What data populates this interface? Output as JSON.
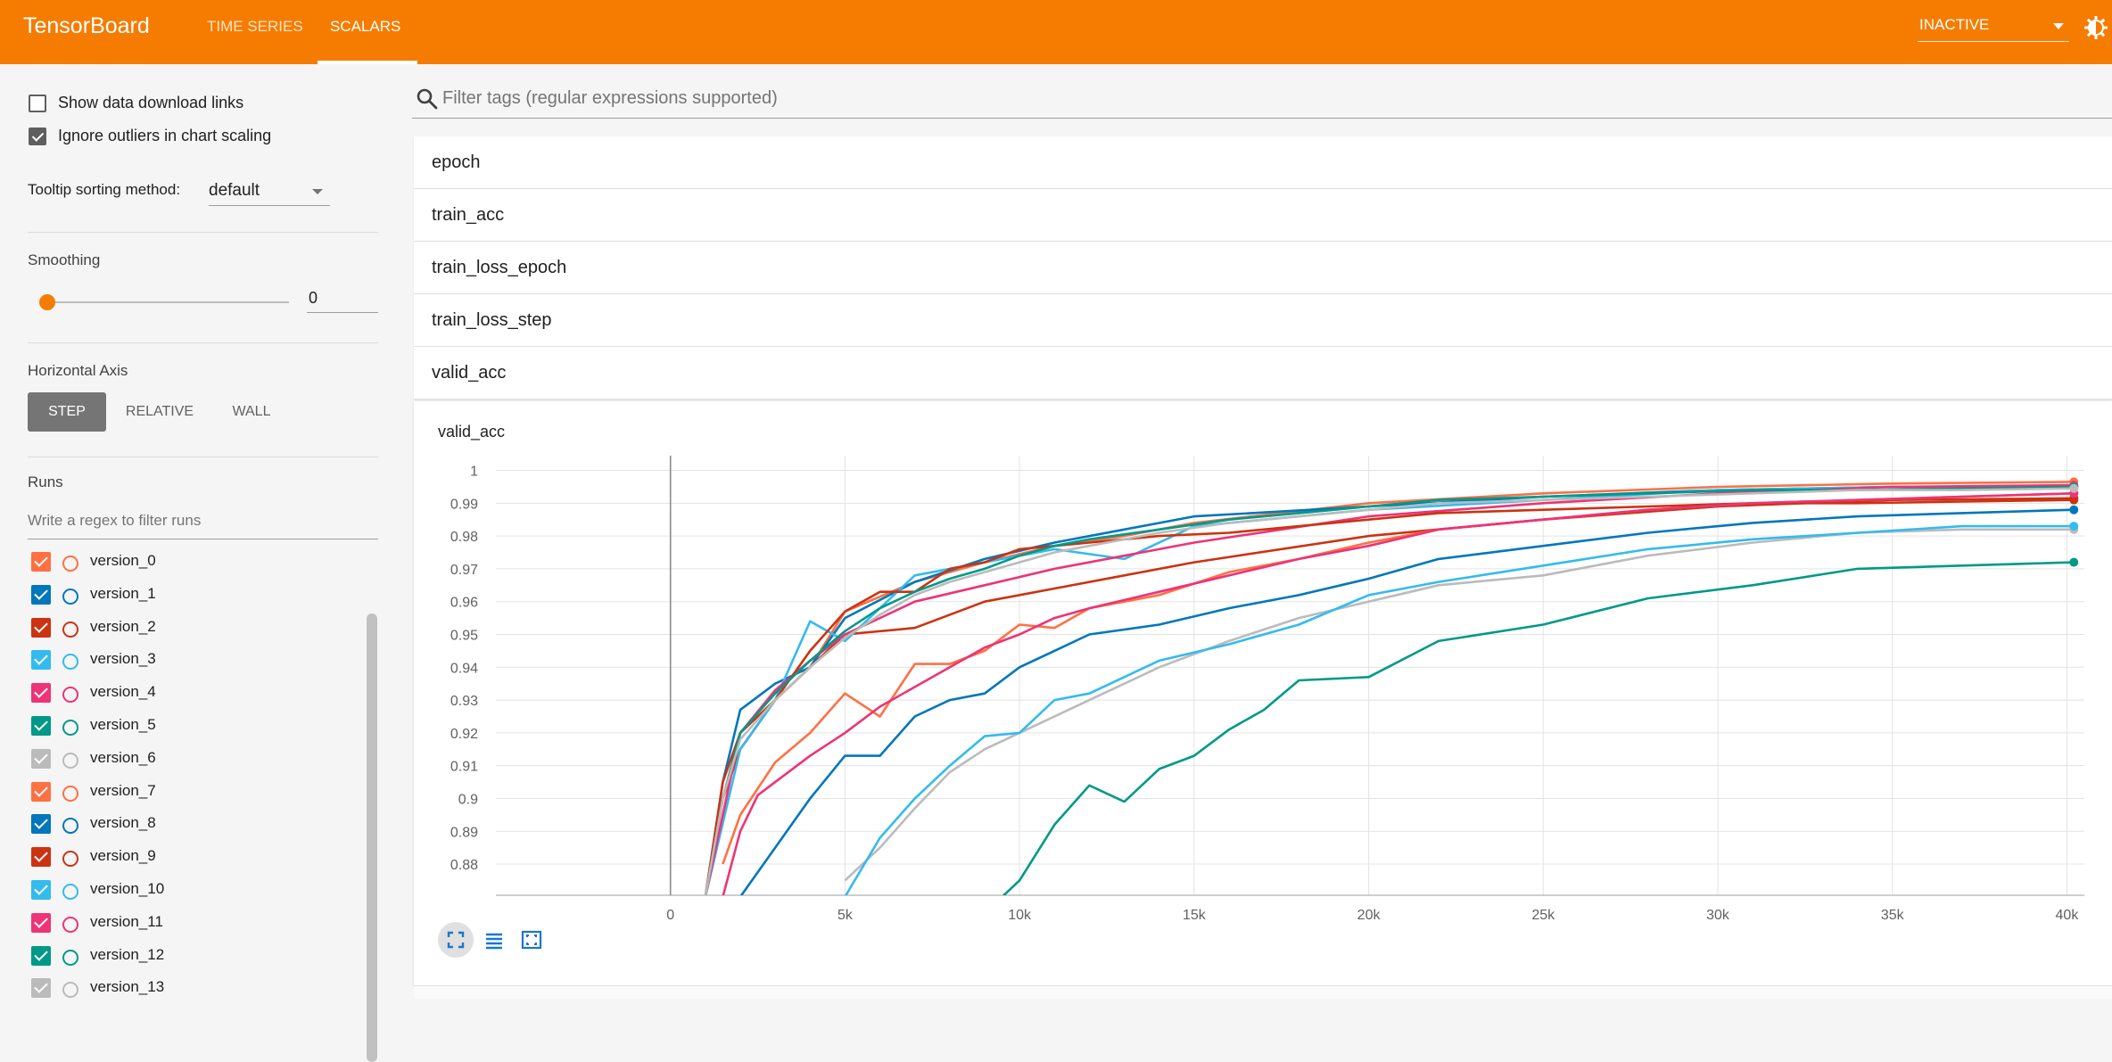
{
  "header": {
    "brand": "TensorBoard",
    "tabs": [
      {
        "label": "TIME SERIES",
        "active": false
      },
      {
        "label": "SCALARS",
        "active": true
      }
    ],
    "run_status": "INACTIVE"
  },
  "sidebar": {
    "show_download_links": {
      "label": "Show data download links",
      "checked": false
    },
    "ignore_outliers": {
      "label": "Ignore outliers in chart scaling",
      "checked": true
    },
    "tooltip_sorting": {
      "label": "Tooltip sorting method:",
      "value": "default"
    },
    "smoothing": {
      "label": "Smoothing",
      "value": "0"
    },
    "horizontal_axis": {
      "label": "Horizontal Axis",
      "options": [
        "STEP",
        "RELATIVE",
        "WALL"
      ],
      "selected": "STEP"
    },
    "runs": {
      "label": "Runs",
      "filter_placeholder": "Write a regex to filter runs",
      "items": [
        {
          "name": "version_0",
          "color": "#ff7043",
          "checked": true
        },
        {
          "name": "version_1",
          "color": "#0077bb",
          "checked": true
        },
        {
          "name": "version_2",
          "color": "#cc3311",
          "checked": true
        },
        {
          "name": "version_3",
          "color": "#33bbee",
          "checked": true
        },
        {
          "name": "version_4",
          "color": "#ee3377",
          "checked": true
        },
        {
          "name": "version_5",
          "color": "#009988",
          "checked": true
        },
        {
          "name": "version_6",
          "color": "#bbbbbb",
          "checked": true
        },
        {
          "name": "version_7",
          "color": "#ff7043",
          "checked": true
        },
        {
          "name": "version_8",
          "color": "#0077bb",
          "checked": true
        },
        {
          "name": "version_9",
          "color": "#cc3311",
          "checked": true
        },
        {
          "name": "version_10",
          "color": "#33bbee",
          "checked": true
        },
        {
          "name": "version_11",
          "color": "#ee3377",
          "checked": true
        },
        {
          "name": "version_12",
          "color": "#009988",
          "checked": true
        },
        {
          "name": "version_13",
          "color": "#bbbbbb",
          "checked": true
        }
      ]
    }
  },
  "main": {
    "filter_placeholder": "Filter tags (regular expressions supported)",
    "tags": [
      "epoch",
      "train_acc",
      "train_loss_epoch",
      "train_loss_step",
      "valid_acc"
    ],
    "card_title": "valid_acc"
  },
  "chart_data": {
    "type": "line",
    "title": "valid_acc",
    "xlabel": "",
    "ylabel": "",
    "xlim": [
      -5000,
      40500
    ],
    "ylim": [
      0.8705,
      1.0045
    ],
    "x_ticks": [
      0,
      5000,
      10000,
      15000,
      20000,
      25000,
      30000,
      35000,
      40000
    ],
    "x_tick_labels": [
      "0",
      "5k",
      "10k",
      "15k",
      "20k",
      "25k",
      "30k",
      "35k",
      "40k"
    ],
    "y_ticks": [
      0.88,
      0.89,
      0.9,
      0.91,
      0.92,
      0.93,
      0.94,
      0.95,
      0.96,
      0.97,
      0.98,
      0.99,
      1
    ],
    "y_tick_labels": [
      "0.88",
      "0.89",
      "0.9",
      "0.91",
      "0.92",
      "0.93",
      "0.94",
      "0.95",
      "0.96",
      "0.97",
      "0.98",
      "0.99",
      "1"
    ],
    "grid": true,
    "legend": "none",
    "series": [
      {
        "color": "#ff7043",
        "x": [
          1000,
          1500,
          2000,
          3000,
          4000,
          5000,
          7000,
          9000,
          11000,
          13000,
          15000,
          20000,
          25000,
          30000,
          35000,
          40200
        ],
        "values": [
          0.87,
          0.9,
          0.915,
          0.93,
          0.94,
          0.957,
          0.966,
          0.972,
          0.977,
          0.98,
          0.984,
          0.99,
          0.993,
          0.995,
          0.996,
          0.9965
        ]
      },
      {
        "color": "#0077bb",
        "x": [
          1000,
          1500,
          2000,
          3000,
          4000,
          5000,
          7000,
          9000,
          11000,
          13000,
          15000,
          20000,
          25000,
          30000,
          35000,
          40200
        ],
        "values": [
          0.87,
          0.905,
          0.927,
          0.935,
          0.94,
          0.955,
          0.966,
          0.973,
          0.978,
          0.982,
          0.986,
          0.989,
          0.992,
          0.994,
          0.995,
          0.995
        ]
      },
      {
        "color": "#cc3311",
        "x": [
          1000,
          1500,
          2000,
          3000,
          4000,
          5000,
          7000,
          9000,
          11000,
          13000,
          15000,
          20000,
          25000,
          30000,
          35000,
          40200
        ],
        "values": [
          0.87,
          0.9,
          0.915,
          0.93,
          0.94,
          0.95,
          0.952,
          0.96,
          0.964,
          0.968,
          0.972,
          0.98,
          0.985,
          0.989,
          0.991,
          0.9915
        ]
      },
      {
        "color": "#33bbee",
        "x": [
          1000,
          2000,
          3000,
          4000,
          5000,
          7000,
          9000,
          11000,
          13000,
          15000,
          20000,
          25000,
          30000,
          35000,
          40200
        ],
        "values": [
          0.87,
          0.915,
          0.93,
          0.954,
          0.948,
          0.968,
          0.972,
          0.976,
          0.973,
          0.983,
          0.988,
          0.991,
          0.994,
          0.995,
          0.995
        ]
      },
      {
        "color": "#ee3377",
        "x": [
          1000,
          2000,
          3000,
          4000,
          5000,
          7000,
          9000,
          11000,
          13000,
          15000,
          20000,
          25000,
          30000,
          35000,
          40200
        ],
        "values": [
          0.87,
          0.92,
          0.933,
          0.942,
          0.95,
          0.96,
          0.965,
          0.97,
          0.974,
          0.978,
          0.986,
          0.99,
          0.993,
          0.995,
          0.9955
        ]
      },
      {
        "color": "#009988",
        "x": [
          9500,
          10000,
          11000,
          12000,
          13000,
          14000,
          15000,
          16000,
          17000,
          18000,
          20000,
          22000,
          25000,
          28000,
          31000,
          34000,
          37000,
          40200
        ],
        "values": [
          0.87,
          0.875,
          0.892,
          0.904,
          0.899,
          0.909,
          0.913,
          0.921,
          0.927,
          0.936,
          0.937,
          0.948,
          0.953,
          0.961,
          0.965,
          0.97,
          0.971,
          0.972
        ]
      },
      {
        "color": "#bbbbbb",
        "x": [
          5000,
          6000,
          7000,
          8000,
          9000,
          10000,
          12000,
          14000,
          16000,
          18000,
          20000,
          22000,
          25000,
          28000,
          31000,
          34000,
          37000,
          40200
        ],
        "values": [
          0.875,
          0.885,
          0.897,
          0.908,
          0.915,
          0.92,
          0.93,
          0.94,
          0.948,
          0.955,
          0.96,
          0.965,
          0.968,
          0.974,
          0.978,
          0.981,
          0.982,
          0.982
        ]
      },
      {
        "color": "#ff7043",
        "x": [
          1500,
          2000,
          3000,
          4000,
          5000,
          6000,
          7000,
          8000,
          9000,
          10000,
          11000,
          12000,
          14000,
          16000,
          18000,
          20000,
          22000,
          25000,
          28000,
          31000,
          34000,
          37000,
          40200
        ],
        "values": [
          0.88,
          0.895,
          0.911,
          0.92,
          0.932,
          0.925,
          0.941,
          0.941,
          0.945,
          0.953,
          0.952,
          0.958,
          0.962,
          0.969,
          0.973,
          0.978,
          0.982,
          0.985,
          0.988,
          0.99,
          0.991,
          0.992,
          0.993
        ]
      },
      {
        "color": "#0077bb",
        "x": [
          2000,
          3000,
          4000,
          5000,
          6000,
          7000,
          8000,
          9000,
          10000,
          11000,
          12000,
          14000,
          16000,
          18000,
          20000,
          22000,
          25000,
          28000,
          31000,
          34000,
          37000,
          40200
        ],
        "values": [
          0.87,
          0.885,
          0.9,
          0.913,
          0.913,
          0.925,
          0.93,
          0.932,
          0.94,
          0.945,
          0.95,
          0.953,
          0.958,
          0.962,
          0.967,
          0.973,
          0.977,
          0.981,
          0.984,
          0.986,
          0.987,
          0.988
        ]
      },
      {
        "color": "#cc3311",
        "x": [
          1000,
          1500,
          2000,
          3000,
          4000,
          5000,
          6000,
          7000,
          8000,
          9000,
          10000,
          11000,
          12000,
          14000,
          16000,
          18000,
          20000,
          22000,
          25000,
          28000,
          31000,
          34000,
          37000,
          40200
        ],
        "values": [
          0.87,
          0.905,
          0.92,
          0.93,
          0.945,
          0.957,
          0.963,
          0.963,
          0.97,
          0.972,
          0.976,
          0.977,
          0.978,
          0.98,
          0.981,
          0.983,
          0.985,
          0.987,
          0.988,
          0.989,
          0.99,
          0.99,
          0.9905,
          0.991
        ]
      },
      {
        "color": "#33bbee",
        "x": [
          5000,
          6000,
          7000,
          8000,
          9000,
          10000,
          11000,
          12000,
          14000,
          16000,
          18000,
          20000,
          22000,
          25000,
          28000,
          31000,
          34000,
          37000,
          40200
        ],
        "values": [
          0.87,
          0.888,
          0.9,
          0.91,
          0.919,
          0.92,
          0.93,
          0.932,
          0.942,
          0.947,
          0.953,
          0.962,
          0.966,
          0.971,
          0.976,
          0.979,
          0.981,
          0.983,
          0.983
        ]
      },
      {
        "color": "#ee3377",
        "x": [
          1500,
          2000,
          2500,
          3000,
          4000,
          5000,
          6000,
          7000,
          8000,
          9000,
          10000,
          11000,
          12000,
          14000,
          16000,
          18000,
          20000,
          22000,
          25000,
          28000,
          31000,
          34000,
          37000,
          40200
        ],
        "values": [
          0.87,
          0.89,
          0.901,
          0.905,
          0.913,
          0.92,
          0.928,
          0.934,
          0.94,
          0.946,
          0.95,
          0.955,
          0.958,
          0.963,
          0.968,
          0.973,
          0.977,
          0.982,
          0.985,
          0.988,
          0.99,
          0.991,
          0.992,
          0.993
        ]
      },
      {
        "color": "#009988",
        "x": [
          1000,
          1500,
          2000,
          3000,
          4000,
          5000,
          6000,
          7000,
          8000,
          9000,
          10000,
          11000,
          12000,
          14000,
          16000,
          18000,
          20000,
          22000,
          25000,
          28000,
          31000,
          34000,
          37000,
          40200
        ],
        "values": [
          0.87,
          0.9,
          0.92,
          0.932,
          0.942,
          0.951,
          0.958,
          0.963,
          0.967,
          0.97,
          0.974,
          0.977,
          0.979,
          0.982,
          0.985,
          0.987,
          0.989,
          0.991,
          0.992,
          0.993,
          0.994,
          0.994,
          0.9945,
          0.995
        ]
      },
      {
        "color": "#bbbbbb",
        "x": [
          1000,
          1500,
          2000,
          3000,
          4000,
          5000,
          6000,
          7000,
          8000,
          9000,
          10000,
          11000,
          12000,
          14000,
          16000,
          18000,
          20000,
          22000,
          25000,
          28000,
          31000,
          34000,
          37000,
          40200
        ],
        "values": [
          0.87,
          0.9,
          0.918,
          0.93,
          0.94,
          0.949,
          0.956,
          0.962,
          0.966,
          0.969,
          0.972,
          0.975,
          0.977,
          0.981,
          0.984,
          0.986,
          0.988,
          0.99,
          0.991,
          0.992,
          0.993,
          0.994,
          0.994,
          0.9945
        ]
      }
    ]
  }
}
